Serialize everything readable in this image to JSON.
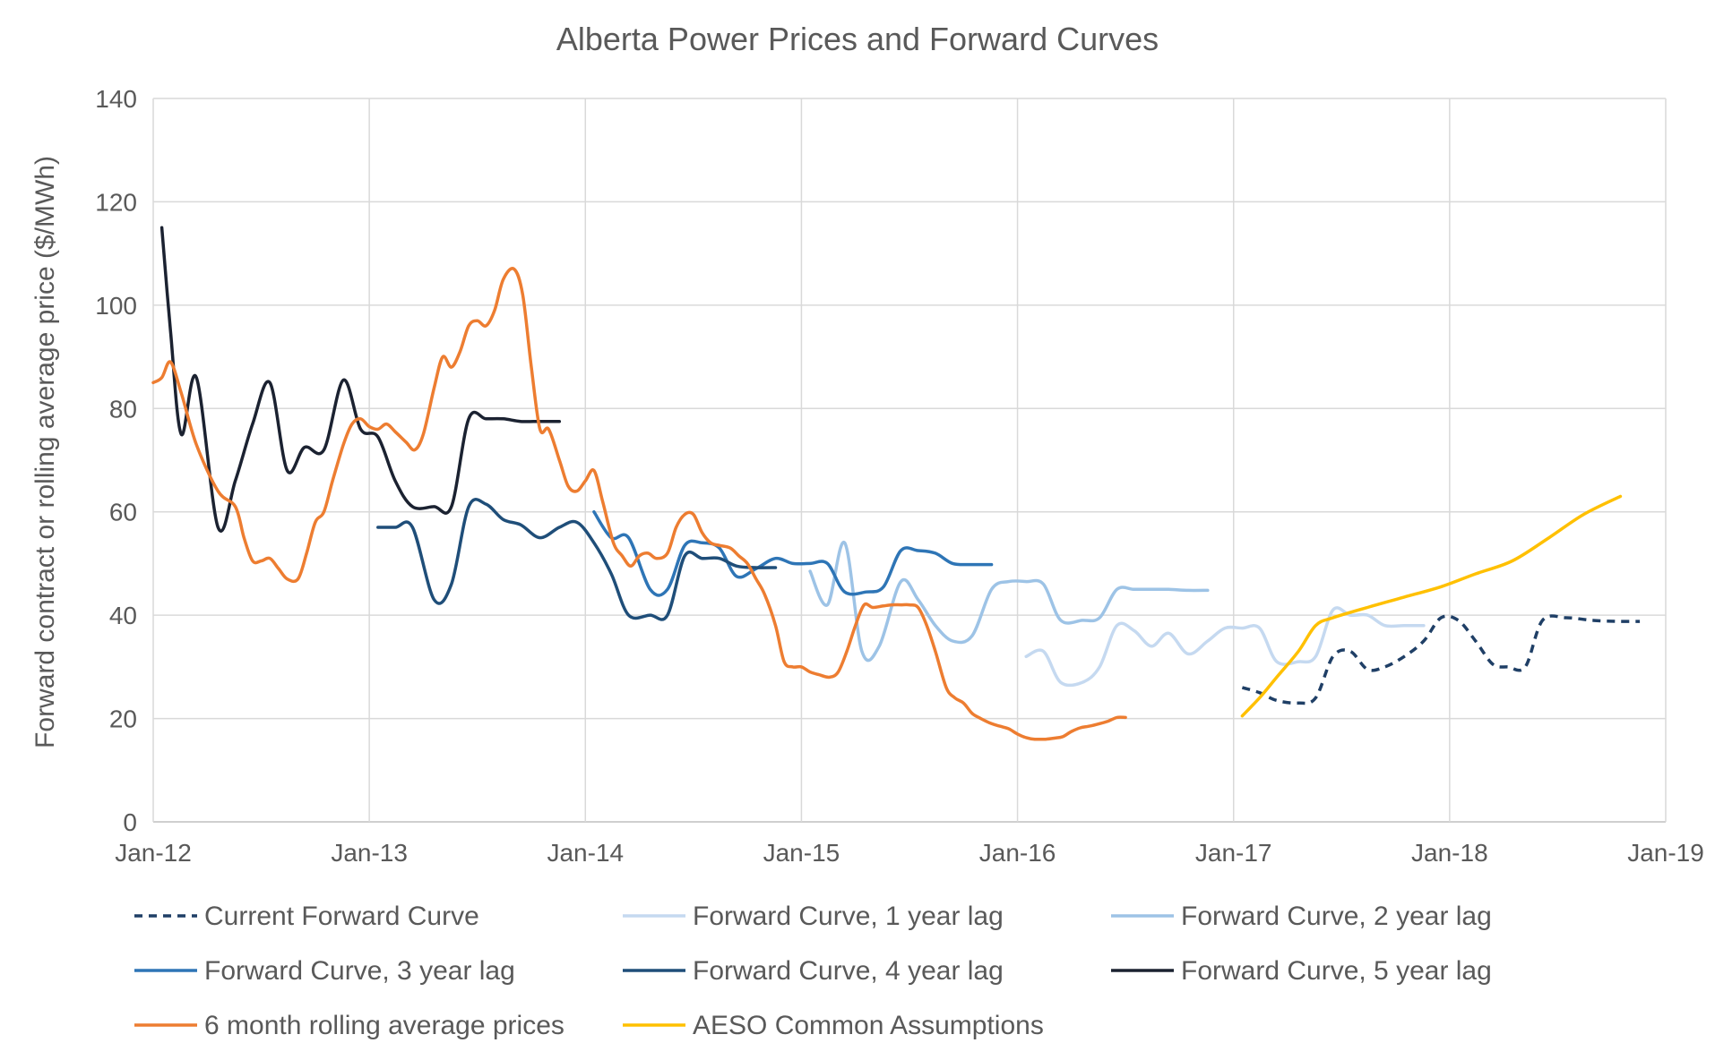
{
  "chart_data": {
    "type": "line",
    "title": "Alberta Power Prices and Forward Curves",
    "xlabel": "",
    "ylabel": "Forward contract or rolling average price ($/MWh)",
    "xlim": [
      2012.0,
      2019.0
    ],
    "ylim": [
      0,
      140
    ],
    "y_ticks": [
      0,
      20,
      40,
      60,
      80,
      100,
      120,
      140
    ],
    "x_ticks": [
      {
        "value": 2012,
        "label": "Jan-12"
      },
      {
        "value": 2013,
        "label": "Jan-13"
      },
      {
        "value": 2014,
        "label": "Jan-14"
      },
      {
        "value": 2015,
        "label": "Jan-15"
      },
      {
        "value": 2016,
        "label": "Jan-16"
      },
      {
        "value": 2017,
        "label": "Jan-17"
      },
      {
        "value": 2018,
        "label": "Jan-18"
      },
      {
        "value": 2019,
        "label": "Jan-19"
      }
    ],
    "grid": true,
    "legend_position": "bottom",
    "series": [
      {
        "name": "Current Forward Curve",
        "color": "#1f3f66",
        "dash": "dashed",
        "points": [
          [
            2017.04,
            26
          ],
          [
            2017.12,
            25
          ],
          [
            2017.2,
            23.5
          ],
          [
            2017.3,
            23
          ],
          [
            2017.38,
            24
          ],
          [
            2017.46,
            32
          ],
          [
            2017.54,
            33
          ],
          [
            2017.62,
            29.5
          ],
          [
            2017.7,
            30
          ],
          [
            2017.79,
            32
          ],
          [
            2017.88,
            35
          ],
          [
            2017.96,
            39.5
          ],
          [
            2018.04,
            39
          ],
          [
            2018.12,
            35
          ],
          [
            2018.2,
            30.5
          ],
          [
            2018.27,
            30
          ],
          [
            2018.35,
            30
          ],
          [
            2018.43,
            39
          ],
          [
            2018.54,
            39.5
          ],
          [
            2018.66,
            39
          ],
          [
            2018.78,
            38.8
          ],
          [
            2018.88,
            38.8
          ]
        ]
      },
      {
        "name": "Forward Curve, 1 year lag",
        "color": "#c5d9f0",
        "dash": "solid",
        "points": [
          [
            2016.04,
            32
          ],
          [
            2016.12,
            33
          ],
          [
            2016.2,
            27
          ],
          [
            2016.3,
            27
          ],
          [
            2016.38,
            30
          ],
          [
            2016.46,
            38
          ],
          [
            2016.54,
            37
          ],
          [
            2016.62,
            34
          ],
          [
            2016.7,
            36.5
          ],
          [
            2016.79,
            32.5
          ],
          [
            2016.88,
            35
          ],
          [
            2016.96,
            37.5
          ],
          [
            2017.04,
            37.5
          ],
          [
            2017.12,
            37.5
          ],
          [
            2017.2,
            31
          ],
          [
            2017.3,
            31
          ],
          [
            2017.38,
            32
          ],
          [
            2017.46,
            41
          ],
          [
            2017.54,
            40
          ],
          [
            2017.62,
            40
          ],
          [
            2017.7,
            38
          ],
          [
            2017.79,
            38
          ],
          [
            2017.88,
            38
          ]
        ]
      },
      {
        "name": "Forward Curve, 2 year lag",
        "color": "#9dc3e6",
        "dash": "solid",
        "points": [
          [
            2015.04,
            48.5
          ],
          [
            2015.12,
            42
          ],
          [
            2015.2,
            54
          ],
          [
            2015.28,
            33
          ],
          [
            2015.36,
            34
          ],
          [
            2015.46,
            46.5
          ],
          [
            2015.54,
            43
          ],
          [
            2015.62,
            38
          ],
          [
            2015.7,
            35
          ],
          [
            2015.79,
            36
          ],
          [
            2015.88,
            45
          ],
          [
            2015.96,
            46.5
          ],
          [
            2016.04,
            46.5
          ],
          [
            2016.12,
            46
          ],
          [
            2016.2,
            39
          ],
          [
            2016.3,
            39
          ],
          [
            2016.38,
            39.5
          ],
          [
            2016.46,
            45
          ],
          [
            2016.54,
            45
          ],
          [
            2016.62,
            45
          ],
          [
            2016.7,
            45
          ],
          [
            2016.79,
            44.8
          ],
          [
            2016.88,
            44.8
          ]
        ]
      },
      {
        "name": "Forward Curve, 3 year lag",
        "color": "#2e75b6",
        "dash": "solid",
        "points": [
          [
            2014.04,
            60
          ],
          [
            2014.12,
            55
          ],
          [
            2014.2,
            55
          ],
          [
            2014.3,
            45
          ],
          [
            2014.38,
            45
          ],
          [
            2014.46,
            53.5
          ],
          [
            2014.54,
            54
          ],
          [
            2014.62,
            53
          ],
          [
            2014.7,
            47.5
          ],
          [
            2014.79,
            49
          ],
          [
            2014.88,
            51
          ],
          [
            2014.96,
            50
          ],
          [
            2015.04,
            50
          ],
          [
            2015.12,
            50
          ],
          [
            2015.2,
            44.5
          ],
          [
            2015.3,
            44.5
          ],
          [
            2015.38,
            45.5
          ],
          [
            2015.46,
            52.5
          ],
          [
            2015.54,
            52.5
          ],
          [
            2015.62,
            52
          ],
          [
            2015.7,
            50
          ],
          [
            2015.79,
            49.8
          ],
          [
            2015.88,
            49.8
          ]
        ]
      },
      {
        "name": "Forward Curve, 4 year lag",
        "color": "#1f4e79",
        "dash": "solid",
        "points": [
          [
            2013.04,
            57
          ],
          [
            2013.12,
            57
          ],
          [
            2013.2,
            57
          ],
          [
            2013.3,
            43
          ],
          [
            2013.38,
            46
          ],
          [
            2013.46,
            61
          ],
          [
            2013.54,
            61.5
          ],
          [
            2013.62,
            58.5
          ],
          [
            2013.7,
            57.5
          ],
          [
            2013.79,
            55
          ],
          [
            2013.88,
            57
          ],
          [
            2013.96,
            58
          ],
          [
            2014.04,
            54
          ],
          [
            2014.12,
            48
          ],
          [
            2014.2,
            40
          ],
          [
            2014.3,
            40
          ],
          [
            2014.38,
            40
          ],
          [
            2014.46,
            51.5
          ],
          [
            2014.54,
            51
          ],
          [
            2014.62,
            51
          ],
          [
            2014.7,
            49.5
          ],
          [
            2014.79,
            49.2
          ],
          [
            2014.88,
            49.2
          ]
        ]
      },
      {
        "name": "Forward Curve, 5 year lag",
        "color": "#1b2231",
        "dash": "solid",
        "points": [
          [
            2012.04,
            115
          ],
          [
            2012.08,
            95
          ],
          [
            2012.13,
            75
          ],
          [
            2012.2,
            86
          ],
          [
            2012.3,
            57
          ],
          [
            2012.38,
            66
          ],
          [
            2012.46,
            77
          ],
          [
            2012.54,
            85
          ],
          [
            2012.62,
            68
          ],
          [
            2012.7,
            72.5
          ],
          [
            2012.79,
            72
          ],
          [
            2012.88,
            85.5
          ],
          [
            2012.96,
            76
          ],
          [
            2013.04,
            74.5
          ],
          [
            2013.12,
            66
          ],
          [
            2013.2,
            61
          ],
          [
            2013.3,
            61
          ],
          [
            2013.38,
            61
          ],
          [
            2013.46,
            78
          ],
          [
            2013.54,
            78
          ],
          [
            2013.62,
            78
          ],
          [
            2013.7,
            77.5
          ],
          [
            2013.79,
            77.5
          ],
          [
            2013.88,
            77.5
          ]
        ]
      },
      {
        "name": "6 month rolling average prices",
        "color": "#ed7d31",
        "dash": "solid",
        "points": [
          [
            2012.0,
            85
          ],
          [
            2012.04,
            86
          ],
          [
            2012.08,
            89
          ],
          [
            2012.13,
            83
          ],
          [
            2012.2,
            73
          ],
          [
            2012.3,
            64
          ],
          [
            2012.38,
            61
          ],
          [
            2012.42,
            55
          ],
          [
            2012.46,
            50.5
          ],
          [
            2012.5,
            50.5
          ],
          [
            2012.54,
            51
          ],
          [
            2012.58,
            49
          ],
          [
            2012.62,
            47
          ],
          [
            2012.67,
            47
          ],
          [
            2012.71,
            52
          ],
          [
            2012.75,
            58
          ],
          [
            2012.79,
            60
          ],
          [
            2012.83,
            66
          ],
          [
            2012.88,
            73
          ],
          [
            2012.92,
            77
          ],
          [
            2012.96,
            78
          ],
          [
            2013.0,
            76.5
          ],
          [
            2013.04,
            76
          ],
          [
            2013.08,
            77
          ],
          [
            2013.12,
            75.5
          ],
          [
            2013.17,
            73.5
          ],
          [
            2013.21,
            72
          ],
          [
            2013.25,
            75
          ],
          [
            2013.3,
            84
          ],
          [
            2013.34,
            90
          ],
          [
            2013.38,
            88
          ],
          [
            2013.42,
            91
          ],
          [
            2013.46,
            96
          ],
          [
            2013.5,
            97
          ],
          [
            2013.54,
            96
          ],
          [
            2013.58,
            99
          ],
          [
            2013.62,
            105
          ],
          [
            2013.67,
            107
          ],
          [
            2013.71,
            102
          ],
          [
            2013.75,
            88
          ],
          [
            2013.79,
            76
          ],
          [
            2013.83,
            76
          ],
          [
            2013.88,
            70
          ],
          [
            2013.92,
            65
          ],
          [
            2013.96,
            64
          ],
          [
            2014.0,
            66
          ],
          [
            2014.04,
            68
          ],
          [
            2014.08,
            62
          ],
          [
            2014.13,
            54
          ],
          [
            2014.17,
            51.5
          ],
          [
            2014.21,
            49.5
          ],
          [
            2014.25,
            51.5
          ],
          [
            2014.29,
            52
          ],
          [
            2014.33,
            51
          ],
          [
            2014.38,
            52
          ],
          [
            2014.42,
            57
          ],
          [
            2014.46,
            59.5
          ],
          [
            2014.5,
            59.5
          ],
          [
            2014.54,
            56
          ],
          [
            2014.58,
            54
          ],
          [
            2014.62,
            53.5
          ],
          [
            2014.67,
            53
          ],
          [
            2014.71,
            51.5
          ],
          [
            2014.75,
            50
          ],
          [
            2014.79,
            47
          ],
          [
            2014.83,
            44
          ],
          [
            2014.88,
            38
          ],
          [
            2014.92,
            31
          ],
          [
            2014.96,
            30
          ],
          [
            2015.0,
            30
          ],
          [
            2015.04,
            29
          ],
          [
            2015.08,
            28.5
          ],
          [
            2015.13,
            28
          ],
          [
            2015.17,
            29
          ],
          [
            2015.21,
            33
          ],
          [
            2015.25,
            38
          ],
          [
            2015.29,
            42
          ],
          [
            2015.33,
            41.5
          ],
          [
            2015.38,
            41.8
          ],
          [
            2015.42,
            42
          ],
          [
            2015.46,
            42
          ],
          [
            2015.5,
            42
          ],
          [
            2015.54,
            41.5
          ],
          [
            2015.58,
            38
          ],
          [
            2015.62,
            33
          ],
          [
            2015.67,
            26
          ],
          [
            2015.71,
            24
          ],
          [
            2015.75,
            23
          ],
          [
            2015.79,
            21
          ],
          [
            2015.83,
            20
          ],
          [
            2015.88,
            19
          ],
          [
            2015.92,
            18.5
          ],
          [
            2015.96,
            18
          ],
          [
            2016.0,
            17
          ],
          [
            2016.04,
            16.3
          ],
          [
            2016.08,
            16
          ],
          [
            2016.13,
            16
          ],
          [
            2016.17,
            16.2
          ],
          [
            2016.21,
            16.5
          ],
          [
            2016.25,
            17.5
          ],
          [
            2016.29,
            18.2
          ],
          [
            2016.33,
            18.5
          ],
          [
            2016.38,
            19
          ],
          [
            2016.42,
            19.5
          ],
          [
            2016.46,
            20.2
          ],
          [
            2016.5,
            20.2
          ]
        ]
      },
      {
        "name": "AESO Common Assumptions",
        "color": "#ffc000",
        "dash": "solid",
        "points": [
          [
            2017.04,
            20.5
          ],
          [
            2017.12,
            24
          ],
          [
            2017.2,
            28
          ],
          [
            2017.3,
            33
          ],
          [
            2017.38,
            38
          ],
          [
            2017.46,
            39.5
          ],
          [
            2017.62,
            41.5
          ],
          [
            2017.79,
            43.5
          ],
          [
            2017.96,
            45.5
          ],
          [
            2018.12,
            48
          ],
          [
            2018.29,
            50.5
          ],
          [
            2018.46,
            55
          ],
          [
            2018.62,
            59.5
          ],
          [
            2018.79,
            63
          ]
        ]
      }
    ]
  }
}
